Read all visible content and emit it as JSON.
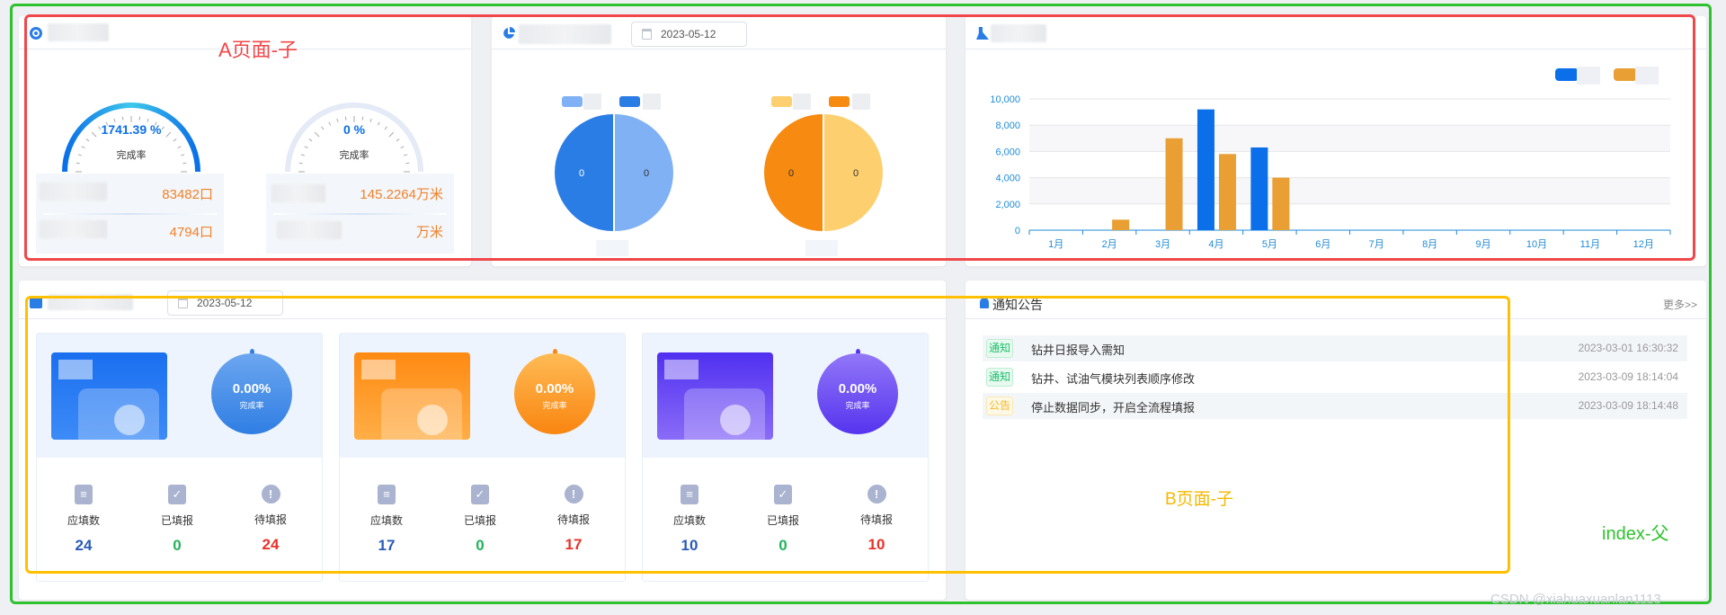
{
  "annotations": {
    "a_label": "A页面-子",
    "b_label": "B页面-子",
    "parent_label": "index-父",
    "watermark": "CSDN @xiahuaxuanlan1113"
  },
  "colors": {
    "blue": "#0a6fe8",
    "orange": "#e99f33",
    "red_frame": "#f0474a",
    "yellow_frame": "#ffc000",
    "green_frame": "#2ec22e"
  },
  "gauges": [
    {
      "value_text": "1741.39 %",
      "label": "完成率",
      "fill": 1.0,
      "row1": "83482口",
      "row2": "4794口"
    },
    {
      "value_text": "0 %",
      "label": "完成率",
      "fill": 0,
      "row1": "145.2264万米",
      "row2": "万米"
    }
  ],
  "pies": {
    "date": "2023-05-12",
    "items": [
      {
        "left": "0",
        "right": "0",
        "colors": [
          "#2b7de6",
          "#7fb1f4"
        ]
      },
      {
        "left": "0",
        "right": "0",
        "colors": [
          "#f78a10",
          "#fdcf6e"
        ]
      }
    ]
  },
  "chart_data": {
    "type": "bar",
    "categories": [
      "1月",
      "2月",
      "3月",
      "4月",
      "5月",
      "6月",
      "7月",
      "8月",
      "9月",
      "10月",
      "11月",
      "12月"
    ],
    "series": [
      {
        "color": "#0a6fe8",
        "values": [
          0,
          0,
          0,
          9200,
          6300,
          0,
          0,
          0,
          0,
          0,
          0,
          0
        ]
      },
      {
        "color": "#e99f33",
        "values": [
          0,
          800,
          7000,
          5800,
          4000,
          0,
          0,
          0,
          0,
          0,
          0,
          0
        ]
      }
    ],
    "yticks": [
      "0",
      "2,000",
      "4,000",
      "6,000",
      "8,000",
      "10,000"
    ],
    "ylim": [
      0,
      10000
    ],
    "grid": true,
    "legend": "top-right"
  },
  "report": {
    "date": "2023-05-12",
    "cards": [
      {
        "pct": "0.00%",
        "rate_label": "完成率",
        "theme": "blue",
        "stats": [
          {
            "label": "应填数",
            "value": "24"
          },
          {
            "label": "已填报",
            "value": "0"
          },
          {
            "label": "待填报",
            "value": "24"
          }
        ]
      },
      {
        "pct": "0.00%",
        "rate_label": "完成率",
        "theme": "orange",
        "stats": [
          {
            "label": "应填数",
            "value": "17"
          },
          {
            "label": "已填报",
            "value": "0"
          },
          {
            "label": "待填报",
            "value": "17"
          }
        ]
      },
      {
        "pct": "0.00%",
        "rate_label": "完成率",
        "theme": "purple",
        "stats": [
          {
            "label": "应填数",
            "value": "10"
          },
          {
            "label": "已填报",
            "value": "0"
          },
          {
            "label": "待填报",
            "value": "10"
          }
        ]
      }
    ]
  },
  "notices": {
    "title": "通知公告",
    "more": "更多>>",
    "items": [
      {
        "tag": "通知",
        "tag_type": "notice",
        "title": "钻井日报导入需知",
        "time": "2023-03-01 16:30:32"
      },
      {
        "tag": "通知",
        "tag_type": "notice",
        "title": "钻井、试油气模块列表顺序修改",
        "time": "2023-03-09 18:14:04"
      },
      {
        "tag": "公告",
        "tag_type": "announce",
        "title": "停止数据同步，开启全流程填报",
        "time": "2023-03-09 18:14:48"
      }
    ]
  }
}
